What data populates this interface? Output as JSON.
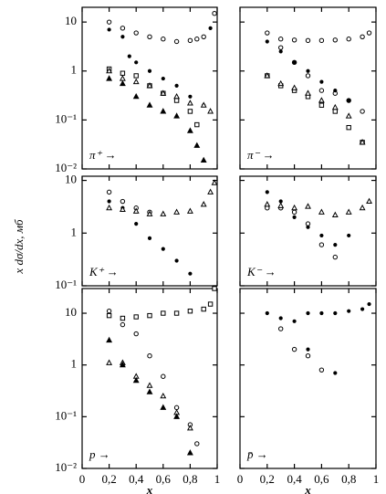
{
  "ylabel": "x dσ/dx, мб",
  "chart_data": [
    {
      "type": "scatter",
      "label": "π⁺ →",
      "log_y": true,
      "xlim": [
        0,
        1
      ],
      "ylim": [
        0.01,
        20
      ],
      "xticks": [
        0,
        0.2,
        0.4,
        0.6,
        0.8,
        1
      ],
      "yticks": [
        10,
        1,
        {
          "value": 0.1,
          "label": "10⁻¹"
        },
        {
          "value": 0.01,
          "label": "10⁻²"
        }
      ],
      "series": [
        {
          "marker": "circle-open",
          "color": "#000",
          "x": [
            0.2,
            0.3,
            0.4,
            0.5,
            0.6,
            0.7,
            0.8,
            0.85,
            0.9,
            0.98
          ],
          "values": [
            10,
            7.5,
            6,
            5,
            4.5,
            4,
            4.2,
            4.5,
            5,
            15
          ]
        },
        {
          "marker": "dot",
          "color": "#000",
          "x": [
            0.2,
            0.3,
            0.35,
            0.4,
            0.5,
            0.6,
            0.7,
            0.8,
            0.9,
            0.95
          ],
          "values": [
            7,
            5,
            2,
            1.5,
            1,
            0.7,
            0.5,
            0.3,
            0.2,
            7.5
          ]
        },
        {
          "marker": "square-open",
          "color": "#000",
          "x": [
            0.2,
            0.3,
            0.4,
            0.5,
            0.6,
            0.7,
            0.8,
            0.85
          ],
          "values": [
            1.1,
            0.9,
            0.8,
            0.5,
            0.35,
            0.25,
            0.15,
            0.08
          ]
        },
        {
          "marker": "triangle-open",
          "color": "#000",
          "x": [
            0.2,
            0.3,
            0.4,
            0.5,
            0.6,
            0.7,
            0.8,
            0.9,
            0.95
          ],
          "values": [
            1,
            0.7,
            0.6,
            0.5,
            0.35,
            0.3,
            0.22,
            0.2,
            0.15
          ]
        },
        {
          "marker": "triangle-filled",
          "color": "#000",
          "x": [
            0.2,
            0.3,
            0.4,
            0.5,
            0.6,
            0.7,
            0.8,
            0.85,
            0.9
          ],
          "values": [
            0.7,
            0.55,
            0.3,
            0.2,
            0.15,
            0.12,
            0.06,
            0.03,
            0.015
          ]
        }
      ]
    },
    {
      "type": "scatter",
      "label": "π⁻ →",
      "log_y": true,
      "xlim": [
        0,
        1
      ],
      "ylim": [
        0.01,
        20
      ],
      "xticks": [
        0,
        0.2,
        0.4,
        0.6,
        0.8,
        1
      ],
      "yticks": [
        10,
        1,
        0.1,
        0.01
      ],
      "series": [
        {
          "marker": "circle-open",
          "color": "#000",
          "x": [
            0.2,
            0.3,
            0.4,
            0.5,
            0.6,
            0.7,
            0.8,
            0.9,
            0.95
          ],
          "values": [
            6,
            4.5,
            4.3,
            4.2,
            4.2,
            4.3,
            4.5,
            5,
            6
          ]
        },
        {
          "marker": "circle-open",
          "color": "#000",
          "x": [
            0.3,
            0.4,
            0.5,
            0.6,
            0.7,
            0.8,
            0.9
          ],
          "values": [
            3,
            1.5,
            0.8,
            0.4,
            0.35,
            0.25,
            0.15
          ]
        },
        {
          "marker": "dot",
          "color": "#000",
          "x": [
            0.2,
            0.3,
            0.4,
            0.5,
            0.6,
            0.7,
            0.8
          ],
          "values": [
            4,
            2.5,
            1.5,
            1,
            0.6,
            0.4,
            0.25
          ]
        },
        {
          "marker": "square-open",
          "color": "#000",
          "x": [
            0.2,
            0.3,
            0.4,
            0.5,
            0.6,
            0.7,
            0.8,
            0.9
          ],
          "values": [
            0.8,
            0.5,
            0.4,
            0.3,
            0.2,
            0.15,
            0.07,
            0.035
          ]
        },
        {
          "marker": "triangle-open",
          "color": "#000",
          "x": [
            0.2,
            0.3,
            0.4,
            0.5,
            0.6,
            0.7,
            0.8,
            0.9
          ],
          "values": [
            0.8,
            0.55,
            0.45,
            0.35,
            0.25,
            0.18,
            0.12,
            0.035
          ]
        }
      ]
    },
    {
      "type": "scatter",
      "label": "K⁺ →",
      "log_y": true,
      "xlim": [
        0,
        1
      ],
      "ylim": [
        0.1,
        12
      ],
      "xticks": [
        0,
        0.2,
        0.4,
        0.6,
        0.8,
        1
      ],
      "yticks": [
        10,
        1,
        {
          "value": 0.1,
          "label": "10⁻¹"
        }
      ],
      "series": [
        {
          "marker": "circle-open",
          "color": "#000",
          "x": [
            0.2,
            0.3,
            0.4,
            0.5
          ],
          "values": [
            6,
            4,
            3,
            2.5
          ]
        },
        {
          "marker": "dot",
          "color": "#000",
          "x": [
            0.2,
            0.3,
            0.4,
            0.5,
            0.6,
            0.7,
            0.8
          ],
          "values": [
            4,
            3,
            1.5,
            0.8,
            0.5,
            0.3,
            0.17
          ]
        },
        {
          "marker": "triangle-open",
          "color": "#000",
          "x": [
            0.2,
            0.3,
            0.4,
            0.5,
            0.6,
            0.7,
            0.8,
            0.9,
            0.95,
            0.98
          ],
          "values": [
            3,
            2.8,
            2.6,
            2.3,
            2.3,
            2.5,
            2.6,
            3.5,
            6,
            9
          ]
        }
      ]
    },
    {
      "type": "scatter",
      "label": "K⁻ →",
      "log_y": true,
      "xlim": [
        0,
        1
      ],
      "ylim": [
        0.1,
        12
      ],
      "xticks": [
        0,
        0.2,
        0.4,
        0.6,
        0.8,
        1
      ],
      "yticks": [
        10,
        1,
        0.1
      ],
      "series": [
        {
          "marker": "circle-open",
          "color": "#000",
          "x": [
            0.2,
            0.3,
            0.4,
            0.5,
            0.6,
            0.7
          ],
          "values": [
            3,
            3,
            2.5,
            1.5,
            0.6,
            0.35
          ]
        },
        {
          "marker": "triangle-open",
          "color": "#000",
          "x": [
            0.2,
            0.3,
            0.4,
            0.5,
            0.6,
            0.7,
            0.8,
            0.9,
            0.95
          ],
          "values": [
            3.5,
            3.3,
            3,
            3.2,
            2.5,
            2.2,
            2.5,
            3,
            4
          ]
        },
        {
          "marker": "dot",
          "color": "#000",
          "x": [
            0.2,
            0.3,
            0.4,
            0.5,
            0.6,
            0.7,
            0.8
          ],
          "values": [
            6,
            4,
            2,
            1.3,
            0.9,
            0.6,
            0.9
          ]
        }
      ]
    },
    {
      "type": "scatter",
      "label": "p →",
      "xlabel": "x",
      "log_y": true,
      "xlim": [
        0,
        1
      ],
      "ylim": [
        0.01,
        30
      ],
      "xticks": [
        0,
        {
          "value": 0.2,
          "label": "0,2"
        },
        {
          "value": 0.4,
          "label": "0,4"
        },
        {
          "value": 0.6,
          "label": "0,6"
        },
        {
          "value": 0.8,
          "label": "0,8"
        },
        1
      ],
      "yticks": [
        10,
        1,
        {
          "value": 0.1,
          "label": "10⁻¹"
        },
        {
          "value": 0.01,
          "label": "10⁻²"
        }
      ],
      "series": [
        {
          "marker": "square-open",
          "color": "#000",
          "x": [
            0.2,
            0.3,
            0.4,
            0.5,
            0.6,
            0.7,
            0.8,
            0.9,
            0.95,
            0.98
          ],
          "values": [
            9,
            8,
            8.5,
            9,
            10,
            10,
            11,
            12,
            15,
            30
          ]
        },
        {
          "marker": "circle-open",
          "color": "#000",
          "x": [
            0.2,
            0.3,
            0.4,
            0.5,
            0.6,
            0.7,
            0.8,
            0.85
          ],
          "values": [
            11,
            6,
            4,
            1.5,
            0.6,
            0.15,
            0.07,
            0.03
          ]
        },
        {
          "marker": "triangle-open",
          "color": "#000",
          "x": [
            0.2,
            0.3,
            0.4,
            0.5,
            0.6,
            0.7,
            0.8
          ],
          "values": [
            1.1,
            1.1,
            0.6,
            0.4,
            0.25,
            0.12,
            0.06
          ]
        },
        {
          "marker": "triangle-filled",
          "color": "#000",
          "x": [
            0.2,
            0.3,
            0.4,
            0.5,
            0.6,
            0.7,
            0.8
          ],
          "values": [
            3,
            1,
            0.5,
            0.3,
            0.15,
            0.1,
            0.02
          ]
        }
      ]
    },
    {
      "type": "scatter",
      "label": "p̄ →",
      "xlabel": "x",
      "log_y": true,
      "xlim": [
        0,
        1
      ],
      "ylim": [
        0.01,
        30
      ],
      "xticks": [
        0,
        {
          "value": 0.2,
          "label": "0,2"
        },
        {
          "value": 0.4,
          "label": "0,4"
        },
        {
          "value": 0.6,
          "label": "0,6"
        },
        {
          "value": 0.8,
          "label": "0,8"
        },
        1
      ],
      "yticks": [
        10,
        1,
        0.1,
        0.01
      ],
      "series": [
        {
          "marker": "dot",
          "color": "#000",
          "x": [
            0.2,
            0.3,
            0.4,
            0.5,
            0.6,
            0.7,
            0.8,
            0.9,
            0.95
          ],
          "values": [
            10,
            8,
            7,
            10,
            10,
            10,
            11,
            12,
            15
          ]
        },
        {
          "marker": "circle-open",
          "color": "#000",
          "x": [
            0.3,
            0.4,
            0.5,
            0.6
          ],
          "values": [
            5,
            2,
            1.5,
            0.8
          ]
        },
        {
          "marker": "dot",
          "color": "#000",
          "x": [
            0.5,
            0.7
          ],
          "values": [
            2,
            0.7
          ]
        }
      ]
    }
  ]
}
